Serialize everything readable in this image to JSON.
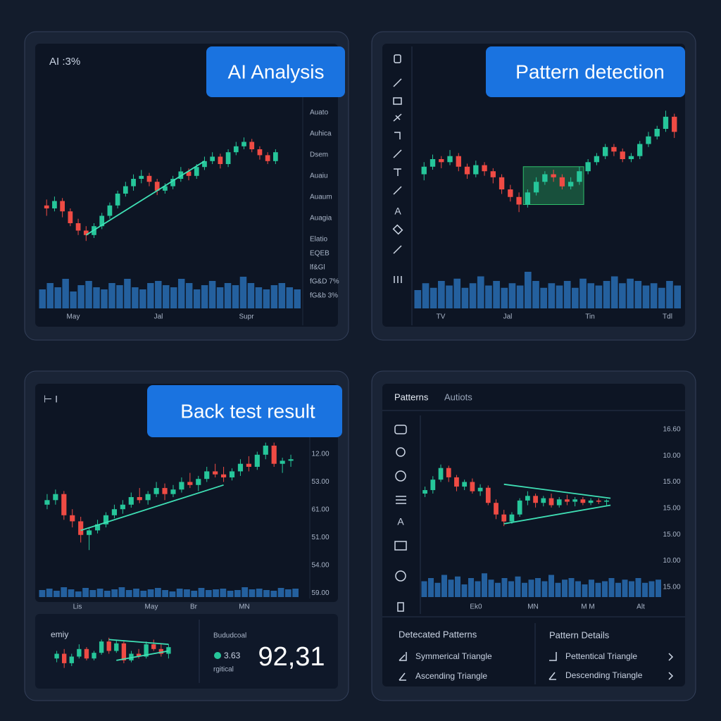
{
  "colors": {
    "up": "#26c69a",
    "down": "#ef4b44",
    "volume": "#24609e",
    "trend": "#3fe0b5",
    "highlight": "#2fbf6a"
  },
  "panels": [
    {
      "badge": "AI Analysis",
      "corner_label": "AI :3%",
      "side_labels": [
        "Auato",
        "Auhica",
        "Dsem",
        "Auaiu",
        "Auaum",
        "Auagia",
        "Elatio",
        "EQEB",
        "lf&Gl",
        "fG&D 7%",
        "fG&b 3%"
      ],
      "x_labels": [
        "May",
        "Jal",
        "Supr"
      ],
      "chart": {
        "xlim": [
          -1,
          32
        ],
        "ylim": [
          0,
          100
        ],
        "candles": [
          [
            42,
            46,
            35,
            40
          ],
          [
            40,
            48,
            38,
            45
          ],
          [
            45,
            47,
            34,
            38
          ],
          [
            38,
            40,
            28,
            30
          ],
          [
            30,
            33,
            22,
            25
          ],
          [
            25,
            28,
            18,
            22
          ],
          [
            22,
            30,
            20,
            28
          ],
          [
            28,
            37,
            26,
            35
          ],
          [
            35,
            44,
            33,
            42
          ],
          [
            42,
            52,
            40,
            50
          ],
          [
            50,
            58,
            48,
            55
          ],
          [
            55,
            63,
            52,
            60
          ],
          [
            60,
            66,
            57,
            62
          ],
          [
            62,
            64,
            55,
            58
          ],
          [
            58,
            60,
            49,
            52
          ],
          [
            52,
            57,
            50,
            55
          ],
          [
            55,
            62,
            53,
            60
          ],
          [
            60,
            68,
            58,
            65
          ],
          [
            65,
            67,
            59,
            62
          ],
          [
            62,
            70,
            60,
            68
          ],
          [
            68,
            75,
            66,
            72
          ],
          [
            72,
            78,
            70,
            75
          ],
          [
            75,
            77,
            67,
            70
          ],
          [
            70,
            80,
            68,
            78
          ],
          [
            78,
            85,
            76,
            82
          ],
          [
            82,
            88,
            80,
            85
          ],
          [
            85,
            87,
            78,
            80
          ],
          [
            80,
            82,
            73,
            76
          ],
          [
            76,
            78,
            70,
            72
          ],
          [
            72,
            80,
            70,
            78
          ]
        ],
        "trendlines": [
          {
            "x": [
              5,
              20
            ],
            "y": [
              22,
              72
            ]
          }
        ],
        "volume": {
          "ylim": [
            0,
            100
          ],
          "values": [
            45,
            60,
            50,
            70,
            40,
            55,
            65,
            50,
            45,
            60,
            55,
            70,
            50,
            45,
            60,
            65,
            55,
            50,
            70,
            60,
            45,
            55,
            65,
            50,
            60,
            55,
            75,
            60,
            50,
            45,
            55,
            60,
            50,
            45
          ]
        }
      }
    },
    {
      "badge": "Pattern detection",
      "toolbar_text": "A",
      "x_labels": [
        "TV",
        "Jal",
        "Tin",
        "Tdl"
      ],
      "chart": {
        "xlim": [
          -1,
          30
        ],
        "ylim": [
          0,
          100
        ],
        "candles": [
          [
            50,
            58,
            46,
            55
          ],
          [
            55,
            63,
            53,
            60
          ],
          [
            60,
            62,
            54,
            58
          ],
          [
            58,
            66,
            56,
            62
          ],
          [
            62,
            64,
            52,
            55
          ],
          [
            55,
            57,
            47,
            50
          ],
          [
            50,
            59,
            48,
            56
          ],
          [
            56,
            58,
            49,
            52
          ],
          [
            52,
            54,
            44,
            48
          ],
          [
            48,
            50,
            37,
            40
          ],
          [
            40,
            43,
            32,
            35
          ],
          [
            35,
            38,
            25,
            30
          ],
          [
            30,
            40,
            28,
            38
          ],
          [
            38,
            48,
            36,
            45
          ],
          [
            45,
            52,
            43,
            50
          ],
          [
            50,
            53,
            45,
            48
          ],
          [
            48,
            50,
            40,
            42
          ],
          [
            42,
            48,
            40,
            45
          ],
          [
            45,
            55,
            43,
            52
          ],
          [
            52,
            60,
            50,
            58
          ],
          [
            58,
            64,
            56,
            62
          ],
          [
            62,
            70,
            60,
            68
          ],
          [
            68,
            70,
            62,
            65
          ],
          [
            65,
            67,
            58,
            60
          ],
          [
            60,
            64,
            58,
            62
          ],
          [
            62,
            72,
            60,
            70
          ],
          [
            70,
            78,
            68,
            75
          ],
          [
            75,
            82,
            73,
            80
          ],
          [
            80,
            92,
            78,
            88
          ],
          [
            88,
            90,
            74,
            78
          ]
        ],
        "highlight": {
          "x": [
            11.5,
            18.5
          ],
          "y": [
            30,
            55
          ]
        },
        "volume": {
          "ylim": [
            0,
            100
          ],
          "values": [
            40,
            55,
            45,
            60,
            50,
            65,
            45,
            55,
            70,
            50,
            60,
            45,
            55,
            50,
            80,
            60,
            45,
            55,
            50,
            60,
            45,
            65,
            55,
            50,
            60,
            70,
            55,
            65,
            60,
            50,
            55,
            45,
            60,
            50
          ]
        }
      }
    },
    {
      "badge": "Back test result",
      "corner_label": "⊢ I",
      "y_labels": [
        "12.00",
        "53.00",
        "61.00",
        "51.00",
        "54.00",
        "59.00"
      ],
      "x_labels": [
        "Lis",
        "May",
        "Br",
        "MN"
      ],
      "chart": {
        "xlim": [
          -1,
          30
        ],
        "ylim": [
          0,
          100
        ],
        "candles": [
          [
            55,
            62,
            52,
            58
          ],
          [
            58,
            65,
            55,
            62
          ],
          [
            62,
            64,
            45,
            48
          ],
          [
            48,
            52,
            40,
            44
          ],
          [
            44,
            47,
            30,
            35
          ],
          [
            35,
            40,
            25,
            38
          ],
          [
            38,
            45,
            36,
            42
          ],
          [
            42,
            50,
            40,
            48
          ],
          [
            48,
            55,
            46,
            52
          ],
          [
            52,
            58,
            49,
            55
          ],
          [
            55,
            63,
            53,
            60
          ],
          [
            60,
            66,
            56,
            58
          ],
          [
            58,
            64,
            55,
            62
          ],
          [
            62,
            70,
            60,
            66
          ],
          [
            66,
            69,
            58,
            62
          ],
          [
            62,
            68,
            60,
            65
          ],
          [
            65,
            73,
            63,
            70
          ],
          [
            70,
            76,
            66,
            68
          ],
          [
            68,
            74,
            64,
            72
          ],
          [
            72,
            80,
            70,
            77
          ],
          [
            77,
            82,
            73,
            75
          ],
          [
            75,
            80,
            70,
            73
          ],
          [
            73,
            79,
            71,
            77
          ],
          [
            77,
            85,
            74,
            82
          ],
          [
            82,
            87,
            77,
            80
          ],
          [
            80,
            90,
            78,
            88
          ],
          [
            88,
            96,
            85,
            94
          ],
          [
            94,
            96,
            80,
            82
          ],
          [
            82,
            86,
            76,
            84
          ],
          [
            84,
            88,
            80,
            85
          ]
        ],
        "trendlines": [
          {
            "x": [
              4,
              21
            ],
            "y": [
              38,
              68
            ]
          }
        ],
        "volume": {
          "ylim": [
            0,
            100
          ],
          "values": [
            50,
            60,
            45,
            70,
            55,
            40,
            65,
            50,
            60,
            45,
            55,
            70,
            50,
            60,
            45,
            55,
            65,
            50,
            40,
            60,
            55,
            45,
            65,
            50,
            55,
            60,
            45,
            50,
            70,
            55,
            60,
            50,
            45,
            65,
            55,
            60
          ]
        }
      },
      "summary": {
        "title": "emiy",
        "label": "Bududcoal",
        "value": "3.63",
        "sublabel": "rgitical",
        "big_number": "92,31",
        "mini_chart": {
          "xlim": [
            -1,
            16
          ],
          "ylim": [
            20,
            70
          ],
          "candles": [
            [
              40,
              48,
              36,
              45
            ],
            [
              45,
              50,
              30,
              35
            ],
            [
              35,
              45,
              32,
              42
            ],
            [
              42,
              55,
              40,
              50
            ],
            [
              50,
              52,
              38,
              40
            ],
            [
              40,
              48,
              38,
              46
            ],
            [
              46,
              60,
              44,
              58
            ],
            [
              58,
              62,
              45,
              48
            ],
            [
              48,
              60,
              46,
              56
            ],
            [
              56,
              58,
              35,
              38
            ],
            [
              38,
              48,
              36,
              45
            ],
            [
              45,
              50,
              40,
              42
            ],
            [
              42,
              58,
              40,
              55
            ],
            [
              55,
              60,
              48,
              50
            ],
            [
              50,
              56,
              42,
              45
            ],
            [
              45,
              55,
              40,
              52
            ]
          ],
          "trendlines": [
            {
              "x": [
                7,
                15
              ],
              "y": [
                60,
                55
              ]
            },
            {
              "x": [
                8,
                15
              ],
              "y": [
                38,
                48
              ]
            }
          ]
        }
      }
    },
    {
      "tabs": [
        "Patterns",
        "Autiots"
      ],
      "toolbar_text": "A",
      "y_labels": [
        "16.60",
        "10.00",
        "15.00",
        "15.00",
        "15.00",
        "10.00",
        "15.00"
      ],
      "x_labels": [
        "Ek0",
        "MN",
        "M M",
        "Alt"
      ],
      "chart": {
        "xlim": [
          -0.5,
          30
        ],
        "ylim": [
          0,
          100
        ],
        "candles": [
          [
            60,
            66,
            57,
            63
          ],
          [
            63,
            75,
            60,
            72
          ],
          [
            72,
            85,
            70,
            82
          ],
          [
            82,
            84,
            70,
            74
          ],
          [
            74,
            76,
            62,
            66
          ],
          [
            66,
            72,
            63,
            70
          ],
          [
            70,
            73,
            60,
            62
          ],
          [
            62,
            68,
            58,
            65
          ],
          [
            65,
            67,
            50,
            52
          ],
          [
            52,
            55,
            38,
            42
          ],
          [
            42,
            46,
            32,
            36
          ],
          [
            36,
            44,
            34,
            42
          ],
          [
            42,
            56,
            40,
            54
          ],
          [
            54,
            62,
            50,
            58
          ],
          [
            58,
            60,
            48,
            52
          ],
          [
            52,
            58,
            49,
            56
          ],
          [
            56,
            60,
            48,
            50
          ],
          [
            50,
            57,
            48,
            55
          ],
          [
            55,
            59,
            50,
            53
          ],
          [
            53,
            57,
            49,
            55
          ],
          [
            55,
            57,
            50,
            52
          ],
          [
            52,
            56,
            50,
            54
          ],
          [
            54,
            56,
            51,
            53
          ],
          [
            53,
            55,
            50,
            54
          ]
        ],
        "trendlines": [
          {
            "x": [
              10,
              23.5
            ],
            "y": [
              68,
              56
            ]
          },
          {
            "x": [
              10,
              23.5
            ],
            "y": [
              34,
              50
            ]
          }
        ],
        "volume": {
          "ylim": [
            0,
            100
          ],
          "values": [
            50,
            60,
            45,
            70,
            55,
            65,
            40,
            60,
            50,
            75,
            55,
            45,
            60,
            50,
            65,
            45,
            55,
            60,
            50,
            70,
            45,
            55,
            60,
            50,
            40,
            55,
            45,
            50,
            60,
            45,
            55,
            50,
            60,
            45,
            50,
            55
          ]
        }
      },
      "patterns": {
        "title": "Detecated Patterns",
        "items": [
          "Symmerical Triangle",
          "Ascending Triangle"
        ]
      },
      "details": {
        "title": "Pattern Details",
        "items": [
          "Pettentical Triangle",
          "Descending Triangle"
        ]
      }
    }
  ]
}
